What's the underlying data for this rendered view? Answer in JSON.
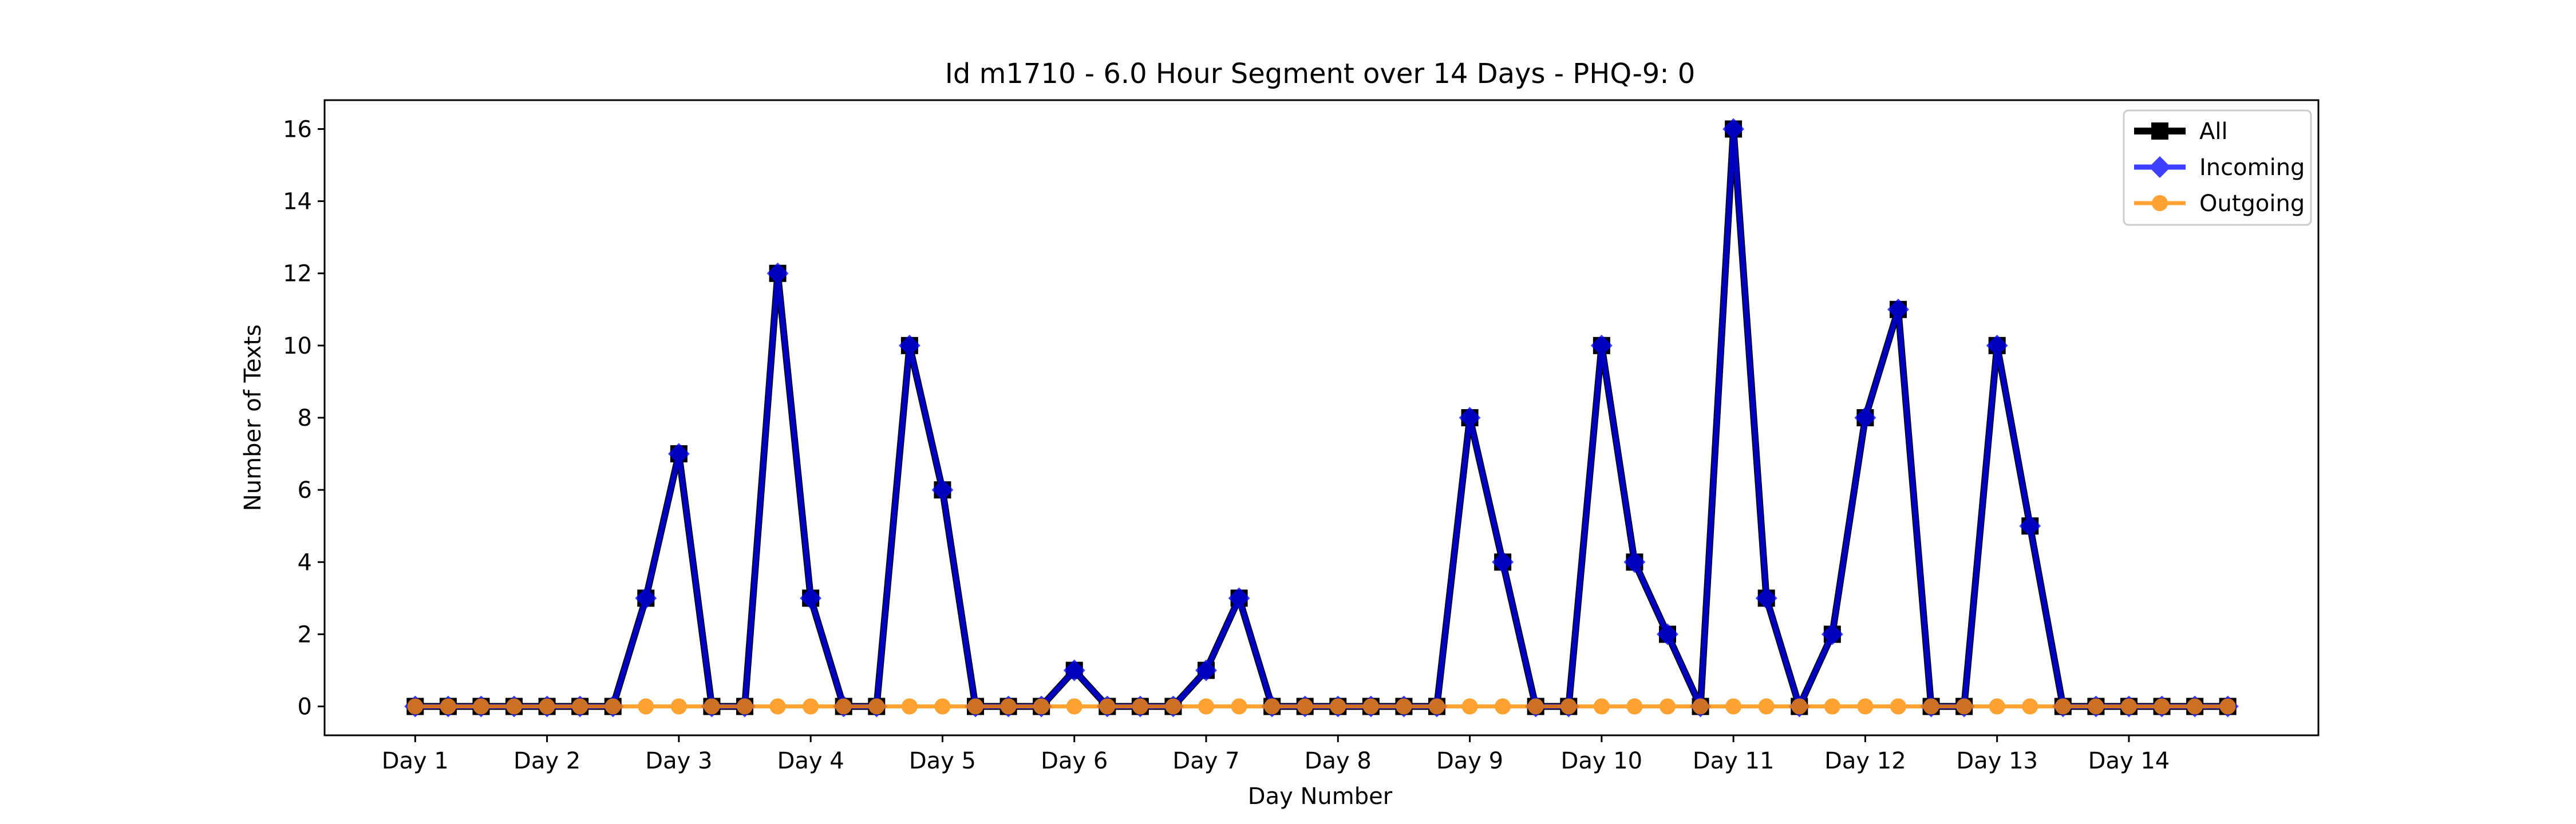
{
  "chart_data": {
    "type": "line",
    "title": "Id m1710 - 6.0 Hour Segment over 14 Days - PHQ-9: 0",
    "xlabel": "Day Number",
    "ylabel": "Number of Texts",
    "ylim": [
      -0.8,
      16.8
    ],
    "yticks": [
      0,
      2,
      4,
      6,
      8,
      10,
      12,
      14,
      16
    ],
    "x": [
      0,
      1,
      2,
      3,
      4,
      5,
      6,
      7,
      8,
      9,
      10,
      11,
      12,
      13,
      14,
      15,
      16,
      17,
      18,
      19,
      20,
      21,
      22,
      23,
      24,
      25,
      26,
      27,
      28,
      29,
      30,
      31,
      32,
      33,
      34,
      35,
      36,
      37,
      38,
      39,
      40,
      41,
      42,
      43,
      44,
      45,
      46,
      47,
      48,
      49,
      50,
      51,
      52,
      53,
      54,
      55
    ],
    "xticks": [
      {
        "at": 0,
        "label": "Day 1"
      },
      {
        "at": 4,
        "label": "Day 2"
      },
      {
        "at": 8,
        "label": "Day 3"
      },
      {
        "at": 12,
        "label": "Day 4"
      },
      {
        "at": 16,
        "label": "Day 5"
      },
      {
        "at": 20,
        "label": "Day 6"
      },
      {
        "at": 24,
        "label": "Day 7"
      },
      {
        "at": 28,
        "label": "Day 8"
      },
      {
        "at": 32,
        "label": "Day 9"
      },
      {
        "at": 36,
        "label": "Day 10"
      },
      {
        "at": 40,
        "label": "Day 11"
      },
      {
        "at": 44,
        "label": "Day 12"
      },
      {
        "at": 48,
        "label": "Day 13"
      },
      {
        "at": 52,
        "label": "Day 14"
      }
    ],
    "grid": false,
    "legend_position": "top-right",
    "series": [
      {
        "name": "All",
        "color": "#000000",
        "marker": "square",
        "values": [
          0,
          0,
          0,
          0,
          0,
          0,
          0,
          3,
          7,
          0,
          0,
          12,
          3,
          0,
          0,
          10,
          6,
          0,
          0,
          0,
          1,
          0,
          0,
          0,
          1,
          3,
          0,
          0,
          0,
          0,
          0,
          0,
          8,
          4,
          0,
          0,
          10,
          4,
          2,
          0,
          16,
          3,
          0,
          2,
          8,
          11,
          0,
          0,
          10,
          5,
          0,
          0,
          0,
          0,
          0,
          0
        ]
      },
      {
        "name": "Incoming",
        "color": "#0000ff",
        "marker": "diamond",
        "values": [
          0,
          0,
          0,
          0,
          0,
          0,
          0,
          3,
          7,
          0,
          0,
          12,
          3,
          0,
          0,
          10,
          6,
          0,
          0,
          0,
          1,
          0,
          0,
          0,
          1,
          3,
          0,
          0,
          0,
          0,
          0,
          0,
          8,
          4,
          0,
          0,
          10,
          4,
          2,
          0,
          16,
          3,
          0,
          2,
          8,
          11,
          0,
          0,
          10,
          5,
          0,
          0,
          0,
          0,
          0,
          0
        ]
      },
      {
        "name": "Outgoing",
        "color": "#ff8c00",
        "marker": "circle",
        "values": [
          0,
          0,
          0,
          0,
          0,
          0,
          0,
          0,
          0,
          0,
          0,
          0,
          0,
          0,
          0,
          0,
          0,
          0,
          0,
          0,
          0,
          0,
          0,
          0,
          0,
          0,
          0,
          0,
          0,
          0,
          0,
          0,
          0,
          0,
          0,
          0,
          0,
          0,
          0,
          0,
          0,
          0,
          0,
          0,
          0,
          0,
          0,
          0,
          0,
          0,
          0,
          0,
          0,
          0,
          0,
          0
        ]
      }
    ]
  }
}
